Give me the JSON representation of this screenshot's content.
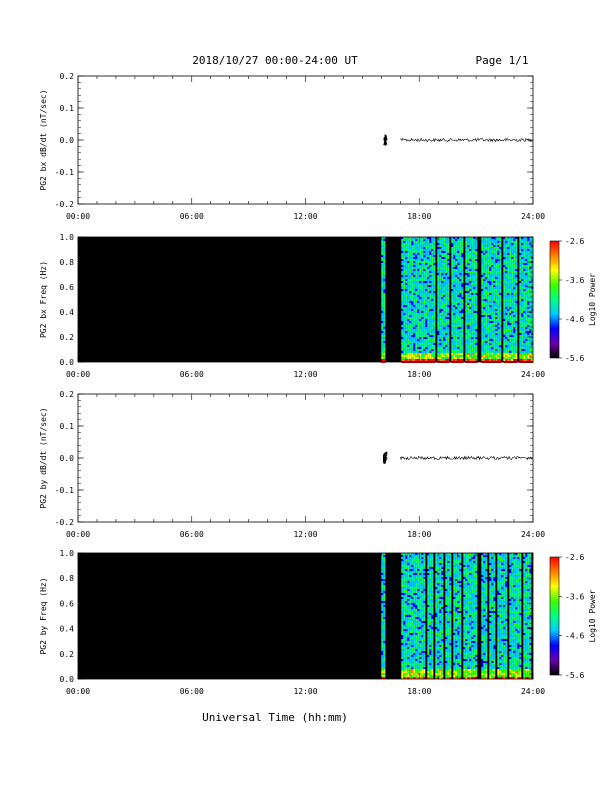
{
  "header": {
    "title": "2018/10/27  00:00-24:00 UT",
    "page": "Page 1/1"
  },
  "footer": {
    "xlabel": "Universal Time (hh:mm)"
  },
  "colorbar": {
    "label": "Log10 Power",
    "ticks": [
      "-2.6",
      "-3.6",
      "-4.6",
      "-5.6"
    ],
    "colors": [
      "#000000",
      "#6a00a8",
      "#0000ff",
      "#00c8ff",
      "#00ff80",
      "#40ff00",
      "#ffff00",
      "#ff8000",
      "#ff0000"
    ]
  },
  "chart_data": [
    {
      "type": "line",
      "ylabel": "PG2 bx dB/dt (nT/sec)",
      "xlim": [
        0,
        24
      ],
      "ylim": [
        -0.2,
        0.2
      ],
      "xticks": [
        "00:00",
        "06:00",
        "12:00",
        "18:00",
        "24:00"
      ],
      "yticks": [
        "0.2",
        "0.1",
        "0.0",
        "-0.1",
        "-0.2"
      ],
      "series": [
        {
          "x": [
            16.1,
            16.3,
            17.0,
            17.3,
            17.7,
            18.0,
            19.0,
            20.0,
            21.0,
            22.0,
            23.0,
            24.0
          ],
          "y": [
            0.0,
            0.01,
            0.0,
            0.0,
            0.0,
            0.0,
            0.0,
            0.0,
            0.0,
            0.0,
            0.0,
            0.0
          ]
        }
      ]
    },
    {
      "type": "heatmap",
      "ylabel": "PG2 bx Freq (Hz)",
      "xlim": [
        0,
        24
      ],
      "ylim": [
        0.0,
        1.0
      ],
      "xticks": [
        "00:00",
        "06:00",
        "12:00",
        "18:00",
        "24:00"
      ],
      "yticks": [
        "1.0",
        "0.8",
        "0.6",
        "0.4",
        "0.2",
        "0.0"
      ],
      "zlim": [
        -5.6,
        -2.6
      ],
      "data_start": 16.0,
      "gaps": [
        [
          0,
          16.0
        ],
        [
          16.2,
          17.0
        ],
        [
          18.8,
          18.9
        ],
        [
          19.5,
          19.6
        ],
        [
          20.3,
          20.4
        ],
        [
          21.0,
          21.2
        ],
        [
          21.7,
          21.8
        ],
        [
          22.3,
          22.4
        ],
        [
          23.1,
          23.2
        ],
        [
          23.6,
          23.7
        ]
      ]
    },
    {
      "type": "line",
      "ylabel": "PG2 by dB/dt (nT/sec)",
      "xlim": [
        0,
        24
      ],
      "ylim": [
        -0.2,
        0.2
      ],
      "xticks": [
        "00:00",
        "06:00",
        "12:00",
        "18:00",
        "24:00"
      ],
      "yticks": [
        "0.2",
        "0.1",
        "0.0",
        "-0.1",
        "-0.2"
      ],
      "series": [
        {
          "x": [
            16.1,
            16.3,
            17.0,
            17.3,
            17.7,
            18.0,
            19.0,
            20.0,
            21.0,
            22.0,
            23.0,
            24.0
          ],
          "y": [
            0.0,
            0.0,
            0.0,
            0.0,
            0.0,
            0.0,
            0.0,
            0.0,
            0.0,
            0.0,
            0.0,
            0.0
          ]
        }
      ]
    },
    {
      "type": "heatmap",
      "ylabel": "PG2 by Freq (Hz)",
      "xlim": [
        0,
        24
      ],
      "ylim": [
        0.0,
        1.0
      ],
      "xticks": [
        "00:00",
        "06:00",
        "12:00",
        "18:00",
        "24:00"
      ],
      "yticks": [
        "1.0",
        "0.8",
        "0.6",
        "0.4",
        "0.2",
        "0.0"
      ],
      "zlim": [
        -5.6,
        -2.6
      ],
      "data_start": 16.0,
      "gaps": [
        [
          0,
          16.0
        ],
        [
          16.2,
          17.0
        ],
        [
          18.3,
          18.4
        ],
        [
          18.7,
          18.8
        ],
        [
          19.2,
          19.3
        ],
        [
          19.6,
          19.7
        ],
        [
          20.2,
          20.3
        ],
        [
          21.0,
          21.2
        ],
        [
          21.5,
          21.6
        ],
        [
          22.0,
          22.1
        ],
        [
          22.6,
          22.7
        ],
        [
          23.3,
          23.4
        ],
        [
          23.9,
          24.0
        ]
      ]
    }
  ]
}
